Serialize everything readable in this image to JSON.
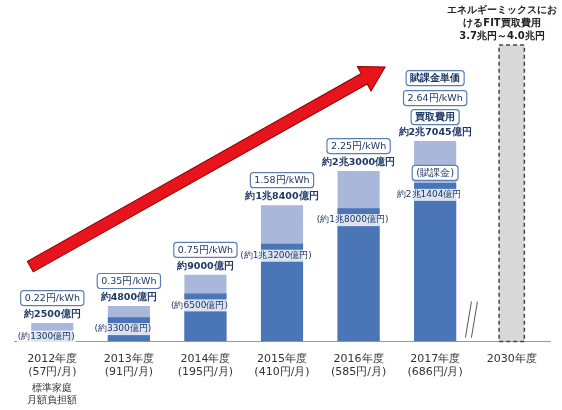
{
  "chart_data": {
    "type": "bar",
    "categories": [
      "2012年度",
      "2013年度",
      "2014年度",
      "2015年度",
      "2016年度",
      "2017年度",
      "2030年度"
    ],
    "series": [
      {
        "name": "買取費用",
        "color": "#a9b8da",
        "values": [
          2500,
          4800,
          9000,
          18400,
          23000,
          27045,
          null
        ],
        "value_labels": [
          "約2500億円",
          "約4800億円",
          "約9000億円",
          "約1兆8400億円",
          "約2兆3000億円",
          "約2兆7045億円",
          null
        ]
      },
      {
        "name": "(賦課金)",
        "color": "#4a76b8",
        "values": [
          1300,
          3300,
          6500,
          13200,
          18000,
          21404,
          null
        ],
        "value_labels": [
          "(約1300億円)",
          "(約3300億円)",
          "(約6500億円)",
          "(約1兆3200億円)",
          "(約1兆8000億円)",
          "約2兆1404億円",
          null
        ]
      },
      {
        "name": "エネルギーミックスにおけるFIT買取費用",
        "color": "#d9d9d9",
        "line_style": "dashed",
        "values": [
          null,
          null,
          null,
          null,
          null,
          null,
          40000
        ],
        "value_labels": [
          null,
          null,
          null,
          null,
          null,
          null,
          "3.7兆円～4.0兆円"
        ]
      }
    ],
    "unit_price": {
      "name": "賦課金単価",
      "values": [
        0.22,
        0.35,
        0.75,
        1.58,
        2.25,
        2.64,
        null
      ],
      "value_labels": [
        "0.22円/kWh",
        "0.35円/kWh",
        "0.75円/kWh",
        "1.58円/kWh",
        "2.25円/kWh",
        "2.64円/kWh",
        null
      ]
    },
    "household_burden": {
      "name": "標準家庭月額負担額",
      "values": [
        57,
        91,
        195,
        410,
        585,
        686,
        null
      ],
      "value_labels": [
        "(57円/月)",
        "(91円/月)",
        "(195円/月)",
        "(410円/月)",
        "(585円/月)",
        "(686円/月)",
        null
      ]
    },
    "ylim": [
      0,
      40000
    ],
    "grid": false,
    "tick_labels": "x",
    "data_labels": true,
    "stacked": false
  }
}
